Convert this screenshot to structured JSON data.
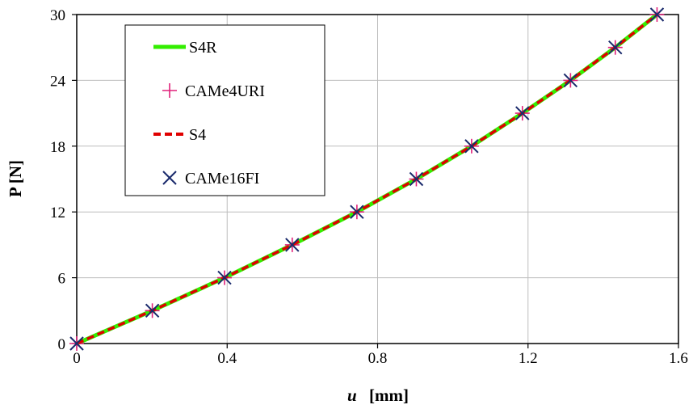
{
  "chart_data": {
    "type": "line",
    "xlabel_symbol": "u",
    "xlabel_unit": "[mm]",
    "ylabel": "P [N]",
    "xlim": [
      0,
      1.6
    ],
    "ylim": [
      0,
      30
    ],
    "xticks": [
      "0",
      "0.4",
      "0.8",
      "1.2",
      "1.6"
    ],
    "yticks": [
      "0",
      "6",
      "12",
      "18",
      "24",
      "30"
    ],
    "grid": true,
    "legend_position": "top-left",
    "series": [
      {
        "name": "S4R",
        "style": "solid-line",
        "color": "#33ee00",
        "x": [
          0,
          0.201,
          0.393,
          0.573,
          0.745,
          0.903,
          1.05,
          1.185,
          1.313,
          1.432,
          1.543
        ],
        "y": [
          0,
          3,
          6,
          9,
          12,
          15,
          18,
          21,
          24,
          27,
          30
        ]
      },
      {
        "name": "CAMe4URI",
        "style": "plus-marker",
        "color": "#e0207a",
        "x": [
          0,
          0.201,
          0.393,
          0.573,
          0.745,
          0.903,
          1.05,
          1.185,
          1.313,
          1.432,
          1.543
        ],
        "y": [
          0,
          3,
          6,
          9,
          12,
          15,
          18,
          21,
          24,
          27,
          30
        ]
      },
      {
        "name": "S4",
        "style": "dashed-line",
        "color": "#e00000",
        "x": [
          0,
          0.201,
          0.393,
          0.573,
          0.745,
          0.903,
          1.05,
          1.185,
          1.313,
          1.432,
          1.543
        ],
        "y": [
          0,
          3,
          6,
          9,
          12,
          15,
          18,
          21,
          24,
          27,
          30
        ]
      },
      {
        "name": "CAMe16FI",
        "style": "x-marker",
        "color": "#1a2a6c",
        "x": [
          0,
          0.201,
          0.393,
          0.573,
          0.745,
          0.903,
          1.05,
          1.185,
          1.313,
          1.432,
          1.543
        ],
        "y": [
          0,
          3,
          6,
          9,
          12,
          15,
          18,
          21,
          24,
          27,
          30
        ]
      }
    ]
  }
}
